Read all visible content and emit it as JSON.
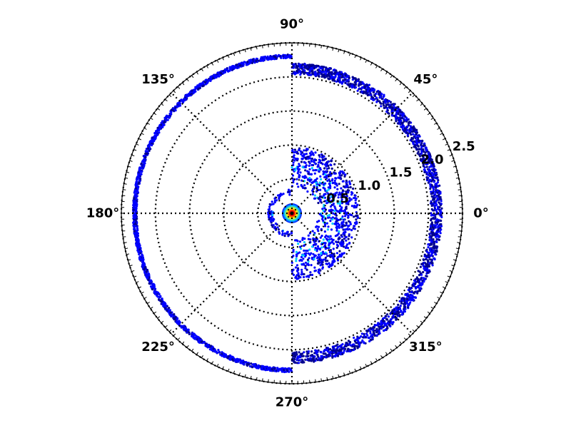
{
  "chart_data": {
    "type": "scatter",
    "projection": "polar",
    "title": "",
    "theta_tick_labels": [
      "0°",
      "45°",
      "90°",
      "135°",
      "180°",
      "225°",
      "270°",
      "315°"
    ],
    "theta_ticks_deg": [
      0,
      45,
      90,
      135,
      180,
      225,
      270,
      315
    ],
    "r_tick_labels": [
      "0.5",
      "1.0",
      "1.5",
      "2.0",
      "2.5"
    ],
    "r_ticks": [
      0.5,
      1.0,
      1.5,
      2.0,
      2.5
    ],
    "r_label_angle_deg": 22.5,
    "rlim": [
      0,
      2.5
    ],
    "grid": true,
    "colormap": "jet",
    "regions": [
      {
        "name": "",
        "r_inner": 0.02,
        "r_outer": 0.13,
        "theta_start": 0,
        "theta_end": 360,
        "density": "very high"
      },
      {
        "name": "",
        "r_inner": 0.18,
        "r_outer": 0.35,
        "theta_start": 90,
        "theta_end": 270,
        "density": "medium"
      },
      {
        "name": "",
        "r_inner": 0.22,
        "r_outer": 0.97,
        "theta_start": -90,
        "theta_end": 90,
        "density": "medium"
      },
      {
        "name": "",
        "r_inner": 1.6,
        "r_outer": 2.2,
        "theta_start": -90,
        "theta_end": 90,
        "density": "low"
      },
      {
        "name": "",
        "r_inner": 1.97,
        "r_outer": 2.33,
        "theta_start": 90,
        "theta_end": 270,
        "density": "medium"
      }
    ]
  },
  "colors": {
    "background": "#ffffff",
    "axis": "#000000",
    "low": "#00008f",
    "medium": "#0000ff",
    "mid_high": "#00c8ff",
    "high": "#ffff00",
    "peak": "#ff0000",
    "core": "#7f0000"
  }
}
